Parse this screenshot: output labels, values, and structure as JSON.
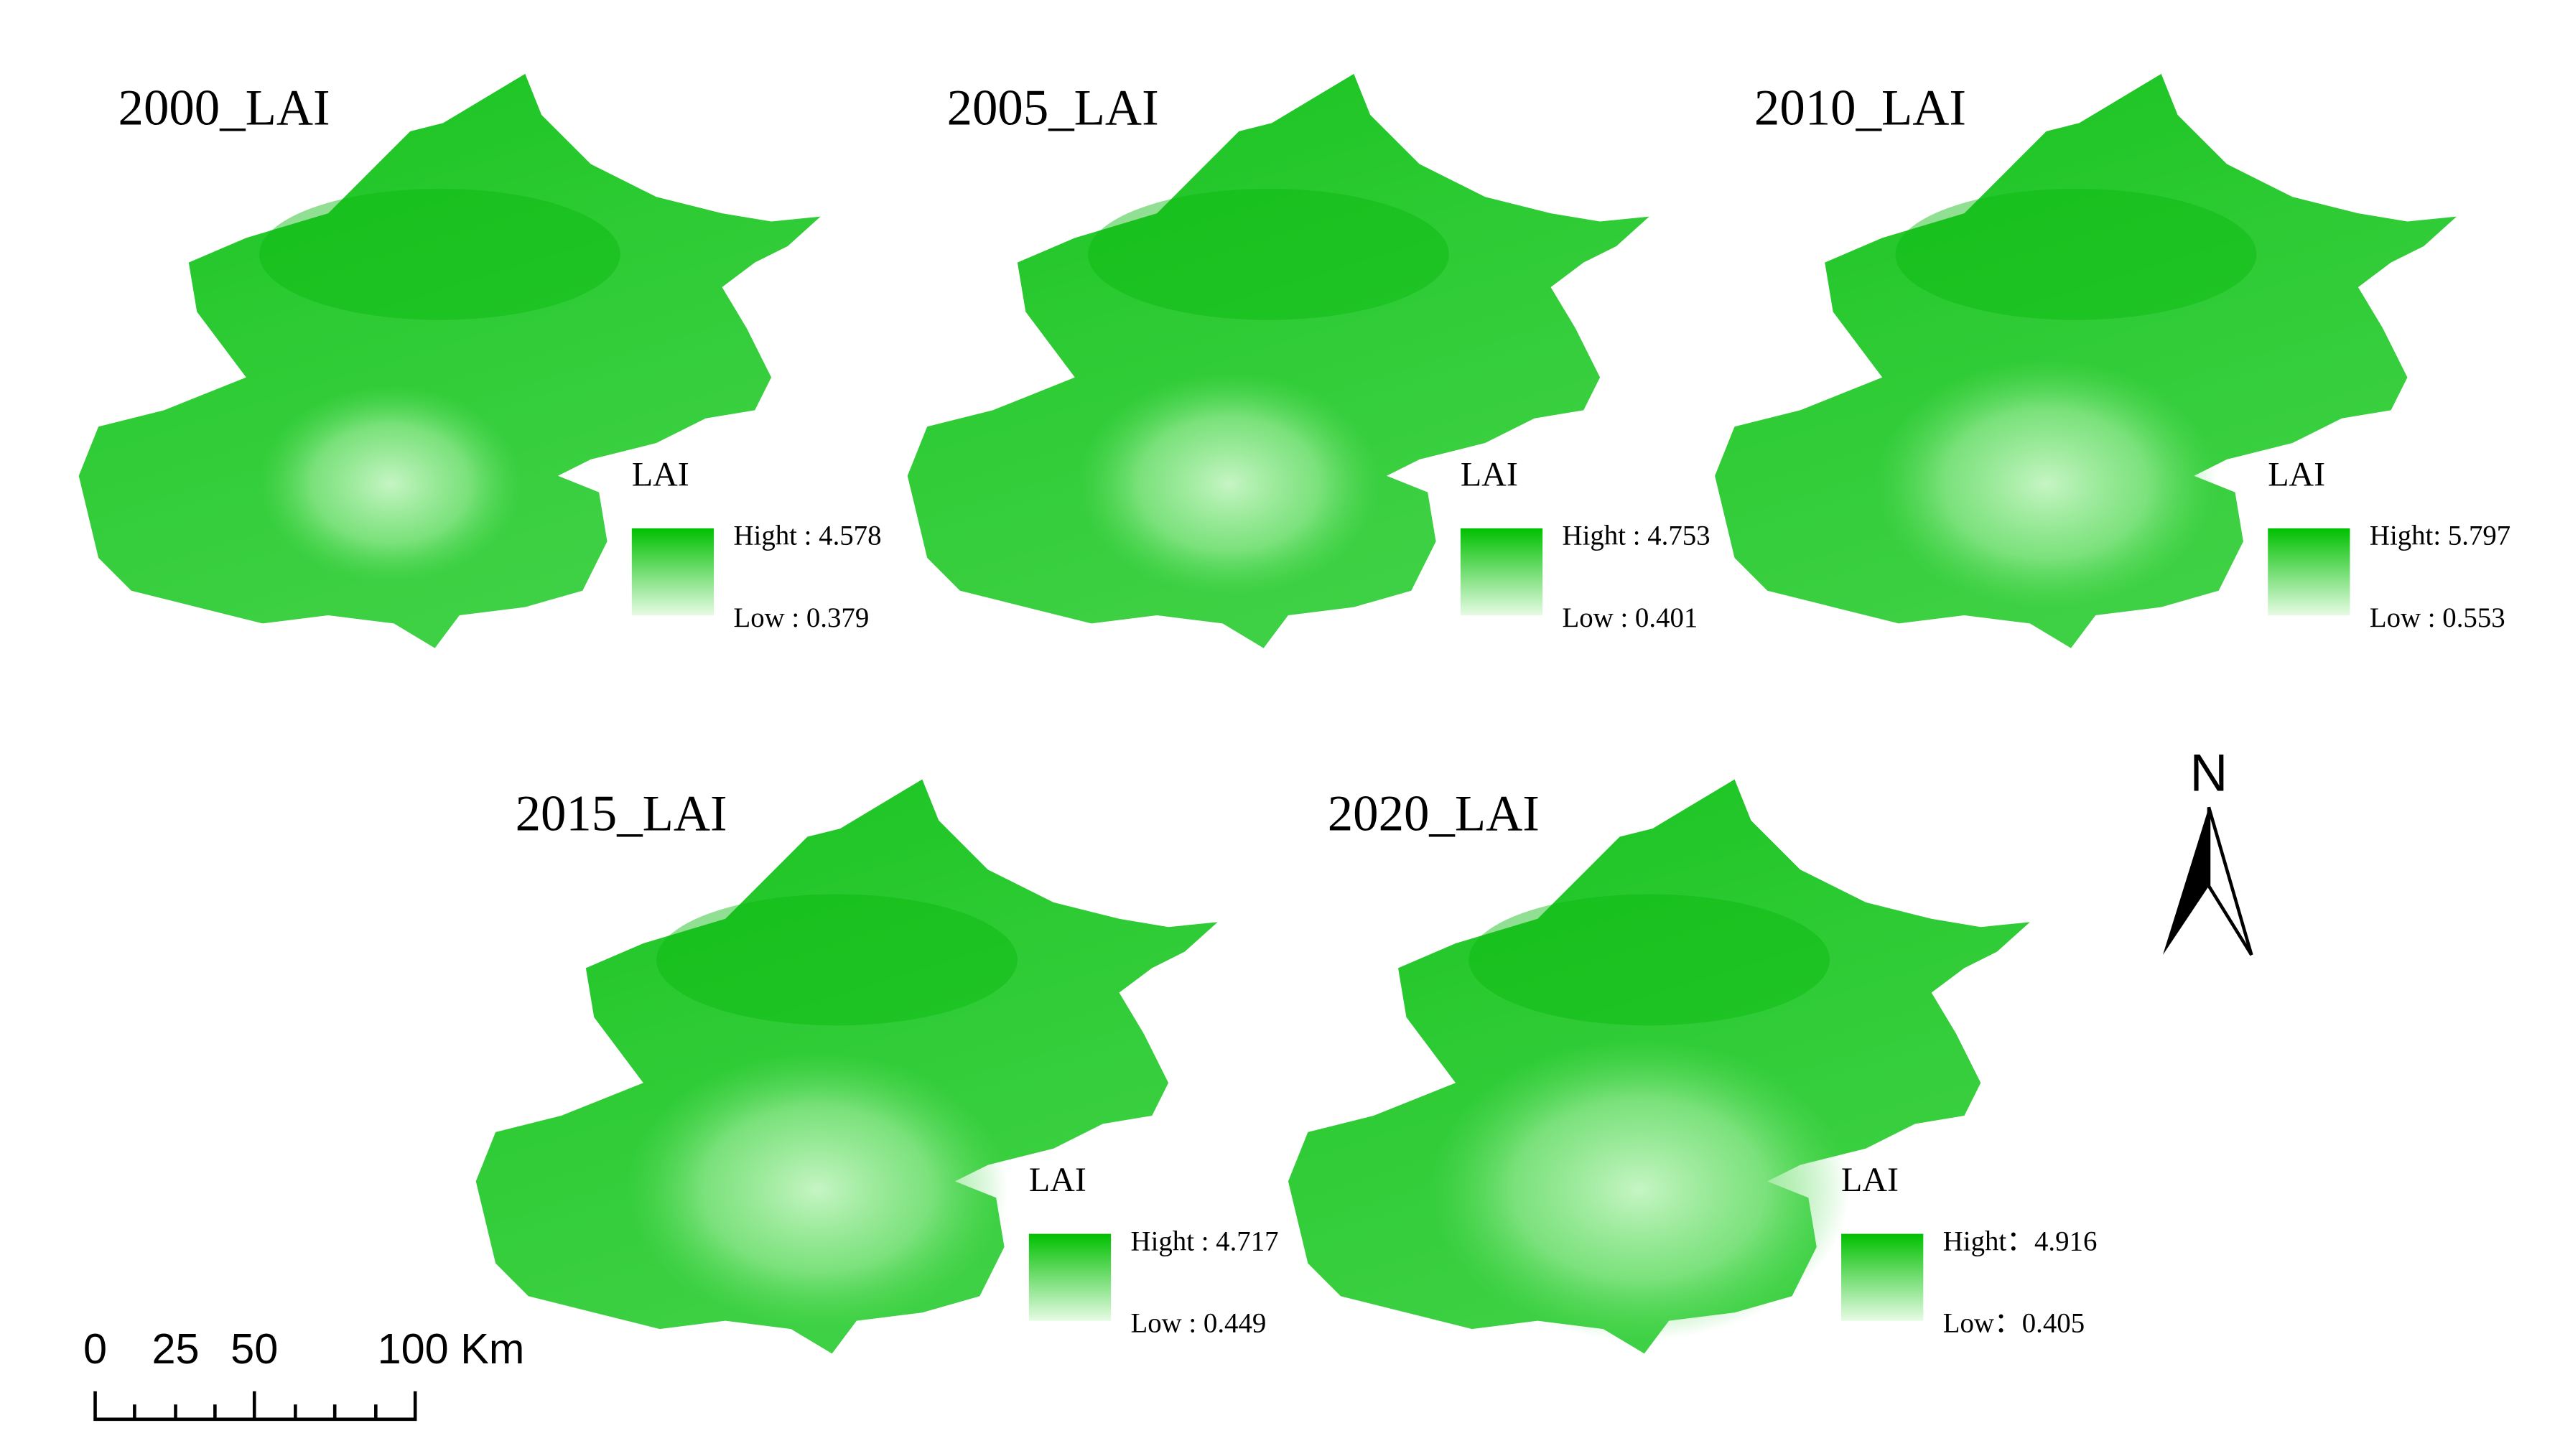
{
  "panels": [
    {
      "title": "2000_LAI",
      "legend_title": "LAI",
      "high": "Hight : 4.578",
      "low": "Low : 0.379"
    },
    {
      "title": "2005_LAI",
      "legend_title": "LAI",
      "high": "Hight : 4.753",
      "low": "Low : 0.401"
    },
    {
      "title": "2010_LAI",
      "legend_title": "LAI",
      "high": "Hight: 5.797",
      "low": "Low : 0.553"
    },
    {
      "title": "2015_LAI",
      "legend_title": "LAI",
      "high": "Hight : 4.717",
      "low": "Low : 0.449"
    },
    {
      "title": "2020_LAI",
      "legend_title": "LAI",
      "high": "Hight：4.916",
      "low": "Low：0.405"
    }
  ],
  "scale_bar": {
    "labels": [
      "0",
      "25",
      "50",
      "100 Km"
    ]
  },
  "north_arrow": {
    "label": "N"
  }
}
